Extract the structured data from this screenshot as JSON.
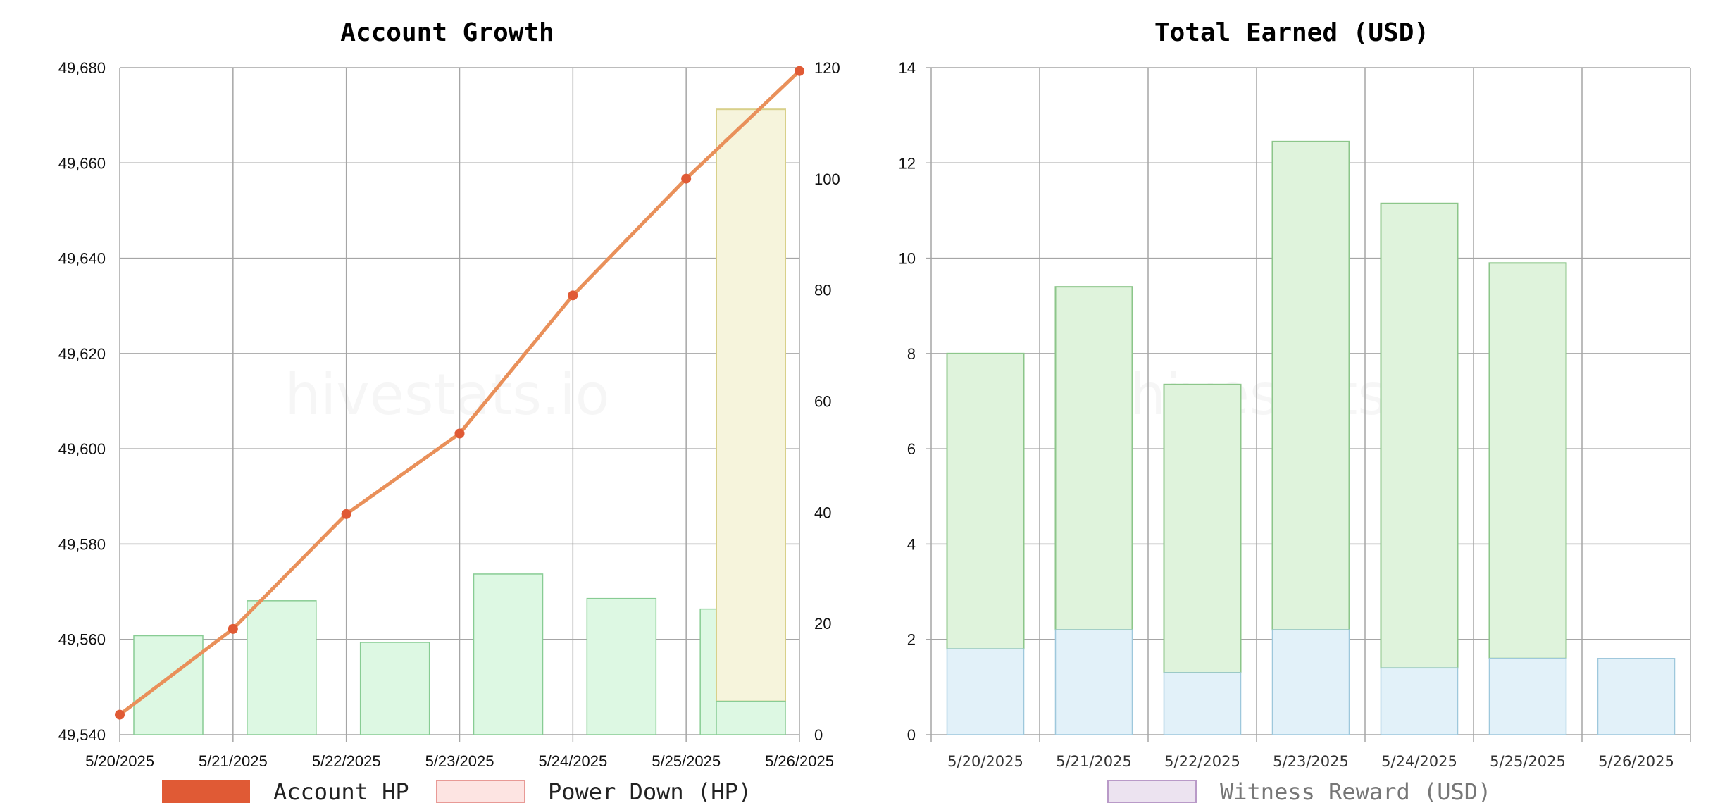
{
  "watermark": "hivestats.io",
  "colors": {
    "account_hp": "#e05a35",
    "account_hp_line": "#e9905a",
    "power_down_fill": "#fde4e2",
    "power_down_stroke": "#e89a96",
    "witness_fill": "#ece3f0",
    "witness_stroke": "#b99ac8",
    "green_fill": "#ddf8e3",
    "green_stroke": "#88cc94",
    "yellow_fill": "#f6f4dc",
    "yellow_stroke": "#d8d08a",
    "blue_fill": "#e2f1f9",
    "blue_stroke": "#9ec8dc",
    "earned_green_fill": "#dff3dc",
    "earned_green_stroke": "#8cc68a",
    "grid": "#a6a6a6"
  },
  "chart_data": [
    {
      "type": "bar+line",
      "title": "Account Growth",
      "categories": [
        "5/20/2025",
        "5/21/2025",
        "5/22/2025",
        "5/23/2025",
        "5/24/2025",
        "5/25/2025",
        "5/26/2025"
      ],
      "y_left": {
        "ylim": [
          49540,
          49680
        ],
        "ticks": [
          "49,540",
          "49,560",
          "49,580",
          "49,600",
          "49,620",
          "49,640",
          "49,660",
          "49,680"
        ]
      },
      "y_right": {
        "ylim": [
          0,
          120
        ],
        "ticks": [
          "0",
          "20",
          "40",
          "60",
          "80",
          "100",
          "120"
        ]
      },
      "series": [
        {
          "name": "Account HP",
          "type": "line",
          "axis": "left",
          "values": [
            49544.2,
            49562.2,
            49586.3,
            49603.2,
            49632.2,
            49656.7,
            49679.3
          ]
        },
        {
          "type": "bar",
          "axis": "right",
          "values": [
            17.8,
            24.1,
            16.6,
            28.9,
            24.5,
            22.6,
            6.0
          ]
        },
        {
          "type": "bar",
          "axis": "right",
          "values": [
            0,
            0,
            0,
            0,
            0,
            0,
            106.5
          ]
        }
      ],
      "legend": [
        "Account HP",
        "Power Down (HP)"
      ],
      "legend_position": "bottom",
      "grid": true
    },
    {
      "type": "stacked-bar",
      "title": "Total Earned (USD)",
      "categories": [
        "5/20/2025",
        "5/21/2025",
        "5/22/2025",
        "5/23/2025",
        "5/24/2025",
        "5/25/2025",
        "5/26/2025"
      ],
      "ylim": [
        0,
        14
      ],
      "ticks": [
        "0",
        "2",
        "4",
        "6",
        "8",
        "10",
        "12",
        "14"
      ],
      "series": [
        {
          "values": [
            1.8,
            2.2,
            1.3,
            2.2,
            1.4,
            1.6,
            1.6
          ]
        },
        {
          "values": [
            6.2,
            7.2,
            6.05,
            10.25,
            9.75,
            8.3,
            0
          ]
        },
        {
          "name": "Witness Reward (USD)",
          "values": [
            0,
            0,
            0,
            0,
            0,
            0,
            0
          ]
        }
      ],
      "legend": [
        "Witness Reward (USD)"
      ],
      "legend_position": "bottom",
      "grid": true
    }
  ]
}
